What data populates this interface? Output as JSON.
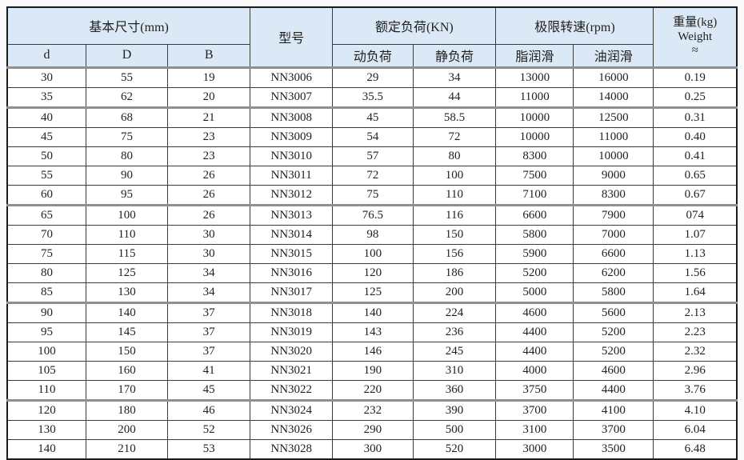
{
  "colors": {
    "header_background": "#dbe9f6",
    "cell_border": "#3a3a3a",
    "outer_border": "#1a1a1a",
    "group_separator": "#8f8f8f",
    "text": "#1f1f1f",
    "page_background": "#fafafa"
  },
  "table": {
    "header": {
      "basic_dimensions_group": "基本尺寸(mm)",
      "model": "型号",
      "rated_load_group": "额定负荷(KN)",
      "limit_speed_group": "极限转速(rpm)",
      "weight_line1": "重量(kg)",
      "weight_line2": "Weight",
      "weight_line3": "≈",
      "sub": {
        "d": "d",
        "D": "D",
        "B": "B",
        "dynamic_load": "动负荷",
        "static_load": "静负荷",
        "grease_lubrication": "脂润滑",
        "oil_lubrication": "油润滑"
      }
    },
    "rows": [
      [
        "30",
        "55",
        "19",
        "NN3006",
        "29",
        "34",
        "13000",
        "16000",
        "0.19"
      ],
      [
        "35",
        "62",
        "20",
        "NN3007",
        "35.5",
        "44",
        "11000",
        "14000",
        "0.25"
      ],
      [
        "40",
        "68",
        "21",
        "NN3008",
        "45",
        "58.5",
        "10000",
        "12500",
        "0.31"
      ],
      [
        "45",
        "75",
        "23",
        "NN3009",
        "54",
        "72",
        "10000",
        "11000",
        "0.40"
      ],
      [
        "50",
        "80",
        "23",
        "NN3010",
        "57",
        "80",
        "8300",
        "10000",
        "0.41"
      ],
      [
        "55",
        "90",
        "26",
        "NN3011",
        "72",
        "100",
        "7500",
        "9000",
        "0.65"
      ],
      [
        "60",
        "95",
        "26",
        "NN3012",
        "75",
        "110",
        "7100",
        "8300",
        "0.67"
      ],
      [
        "65",
        "100",
        "26",
        "NN3013",
        "76.5",
        "116",
        "6600",
        "7900",
        "074"
      ],
      [
        "70",
        "110",
        "30",
        "NN3014",
        "98",
        "150",
        "5800",
        "7000",
        "1.07"
      ],
      [
        "75",
        "115",
        "30",
        "NN3015",
        "100",
        "156",
        "5900",
        "6600",
        "1.13"
      ],
      [
        "80",
        "125",
        "34",
        "NN3016",
        "120",
        "186",
        "5200",
        "6200",
        "1.56"
      ],
      [
        "85",
        "130",
        "34",
        "NN3017",
        "125",
        "200",
        "5000",
        "5800",
        "1.64"
      ],
      [
        "90",
        "140",
        "37",
        "NN3018",
        "140",
        "224",
        "4600",
        "5600",
        "2.13"
      ],
      [
        "95",
        "145",
        "37",
        "NN3019",
        "143",
        "236",
        "4400",
        "5200",
        "2.23"
      ],
      [
        "100",
        "150",
        "37",
        "NN3020",
        "146",
        "245",
        "4400",
        "5200",
        "2.32"
      ],
      [
        "105",
        "160",
        "41",
        "NN3021",
        "190",
        "310",
        "4000",
        "4600",
        "2.96"
      ],
      [
        "110",
        "170",
        "45",
        "NN3022",
        "220",
        "360",
        "3750",
        "4400",
        "3.76"
      ],
      [
        "120",
        "180",
        "46",
        "NN3024",
        "232",
        "390",
        "3700",
        "4100",
        "4.10"
      ],
      [
        "130",
        "200",
        "52",
        "NN3026",
        "290",
        "500",
        "3100",
        "3700",
        "6.04"
      ],
      [
        "140",
        "210",
        "53",
        "NN3028",
        "300",
        "520",
        "3000",
        "3500",
        "6.48"
      ]
    ]
  }
}
